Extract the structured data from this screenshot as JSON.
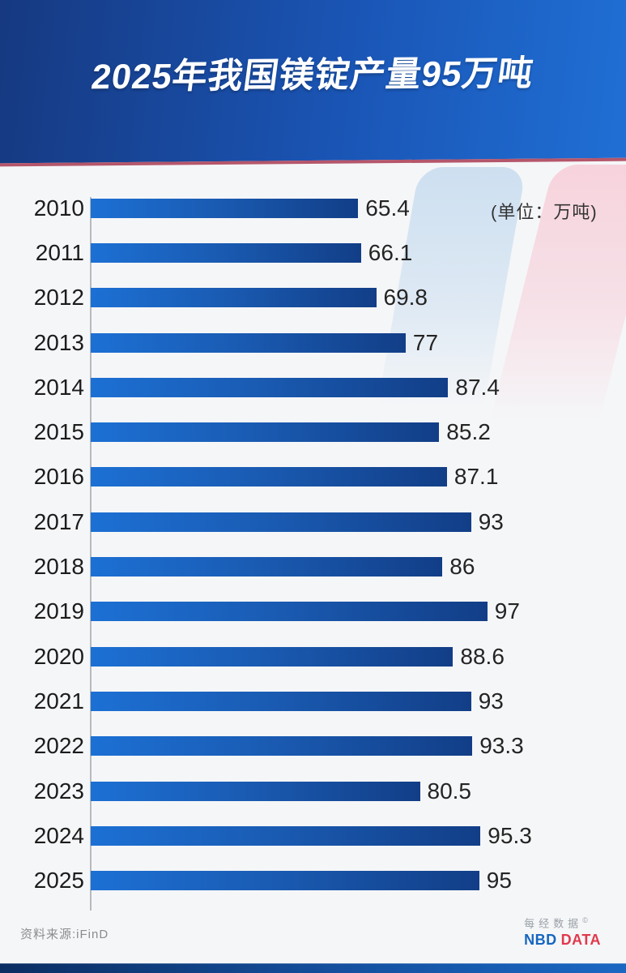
{
  "header": {
    "title": "2025年我国镁锭产量95万吨"
  },
  "unit_label": "(单位：万吨)",
  "chart_data": {
    "type": "bar",
    "orientation": "horizontal",
    "title": "2025年我国镁锭产量95万吨",
    "unit": "万吨",
    "categories": [
      "2010",
      "2011",
      "2012",
      "2013",
      "2014",
      "2015",
      "2016",
      "2017",
      "2018",
      "2019",
      "2020",
      "2021",
      "2022",
      "2023",
      "2024",
      "2025"
    ],
    "values": [
      65.4,
      66.1,
      69.8,
      77,
      87.4,
      85.2,
      87.1,
      93,
      86,
      97,
      88.6,
      93,
      93.3,
      80.5,
      95.3,
      95
    ],
    "value_labels": [
      "65.4",
      "66.1",
      "69.8",
      "77",
      "87.4",
      "85.2",
      "87.1",
      "93",
      "86",
      "97",
      "88.6",
      "93",
      "93.3",
      "80.5",
      "95.3",
      "95"
    ],
    "xlim": [
      0,
      100
    ],
    "grid": false,
    "legend": "none",
    "bar_color_start": "#1c70d4",
    "bar_color_end": "#123e87"
  },
  "footer": {
    "source": "资料来源:iFinD",
    "logo_cn": "每经数据",
    "logo_copyright": "©",
    "logo_nbd": "NBD",
    "logo_data": "DATA"
  },
  "colors": {
    "banner_gradient_left": "#16387f",
    "banner_gradient_right": "#2070d6",
    "banner_underline": "#b5566b",
    "background": "#f5f6f8",
    "deco_blue": "#cbdef0",
    "deco_pink": "#f7d1db",
    "year_text": "#1c1c1c",
    "value_text": "#242424",
    "source_text": "#8c8c8c",
    "logo_blue": "#1566c0",
    "logo_red": "#e0394c"
  }
}
